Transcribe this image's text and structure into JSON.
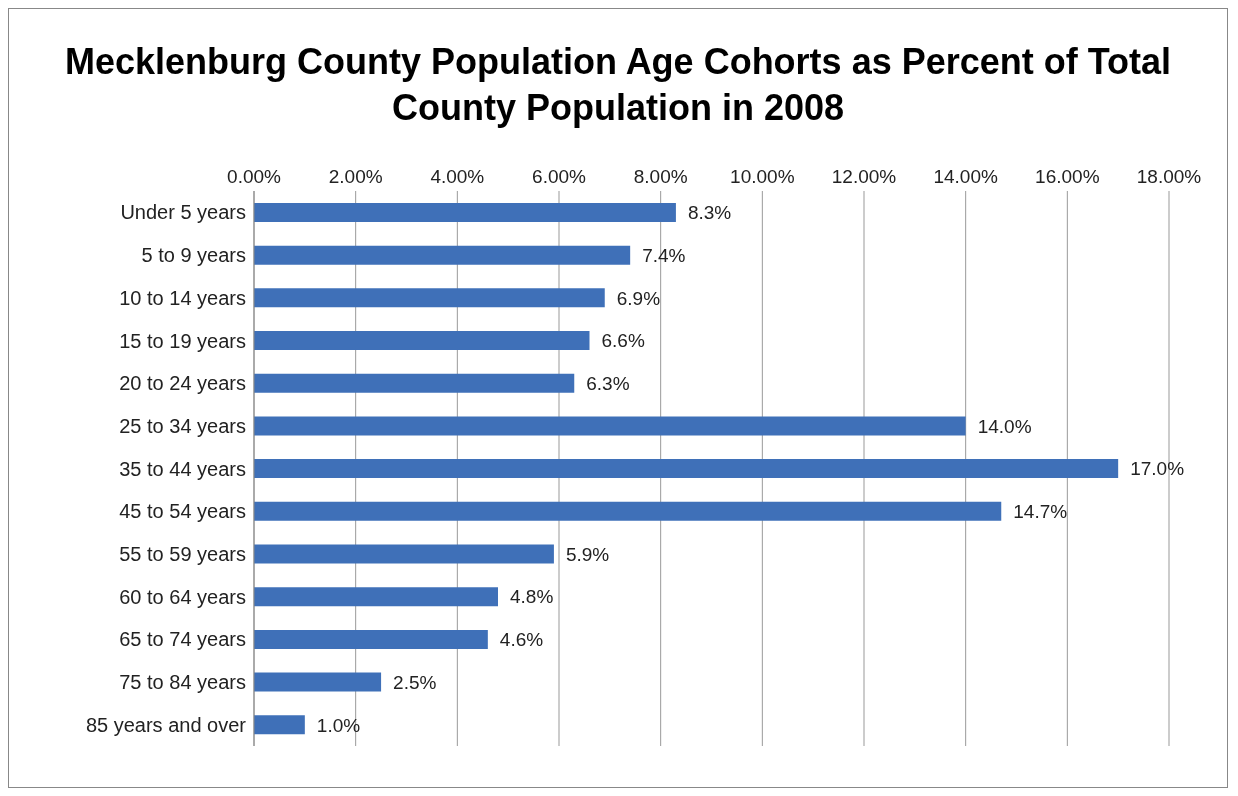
{
  "chart_data": {
    "type": "bar",
    "orientation": "horizontal",
    "title": "Mecklenburg County Population Age Cohorts as Percent of Total County Population in 2008",
    "categories": [
      "Under 5 years",
      "5 to 9 years",
      "10 to 14 years",
      "15 to 19 years",
      "20 to 24 years",
      "25 to 34 years",
      "35 to 44 years",
      "45 to 54 years",
      "55 to 59 years",
      "60 to 64 years",
      "65 to 74 years",
      "75 to 84 years",
      "85 years and over"
    ],
    "values": [
      8.3,
      7.4,
      6.9,
      6.6,
      6.3,
      14.0,
      17.0,
      14.7,
      5.9,
      4.8,
      4.6,
      2.5,
      1.0
    ],
    "value_labels": [
      "8.3%",
      "7.4%",
      "6.9%",
      "6.6%",
      "6.3%",
      "14.0%",
      "17.0%",
      "14.7%",
      "5.9%",
      "4.8%",
      "4.6%",
      "2.5%",
      "1.0%"
    ],
    "color": "#3f70b8",
    "xlim": [
      0,
      18
    ],
    "xticks": [
      {
        "value": 0,
        "label": "0.00%"
      },
      {
        "value": 2,
        "label": "2.00%"
      },
      {
        "value": 4,
        "label": "4.00%"
      },
      {
        "value": 6,
        "label": "6.00%"
      },
      {
        "value": 8,
        "label": "8.00%"
      },
      {
        "value": 10,
        "label": "10.00%"
      },
      {
        "value": 12,
        "label": "12.00%"
      },
      {
        "value": 14,
        "label": "14.00%"
      },
      {
        "value": 16,
        "label": "16.00%"
      },
      {
        "value": 18,
        "label": "18.00%"
      }
    ],
    "grid": "x",
    "legend": false
  }
}
